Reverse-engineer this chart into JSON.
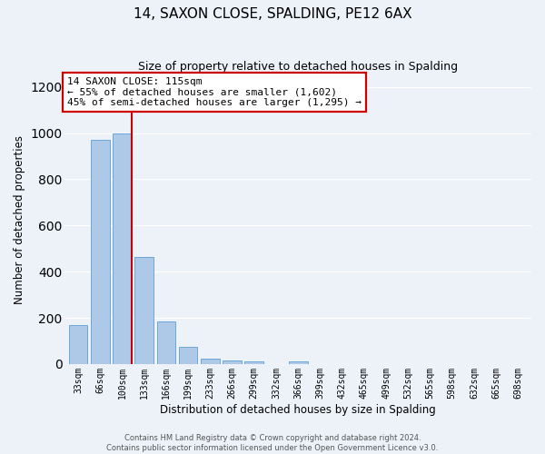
{
  "title": "14, SAXON CLOSE, SPALDING, PE12 6AX",
  "subtitle": "Size of property relative to detached houses in Spalding",
  "xlabel": "Distribution of detached houses by size in Spalding",
  "ylabel": "Number of detached properties",
  "bin_labels": [
    "33sqm",
    "66sqm",
    "100sqm",
    "133sqm",
    "166sqm",
    "199sqm",
    "233sqm",
    "266sqm",
    "299sqm",
    "332sqm",
    "366sqm",
    "399sqm",
    "432sqm",
    "465sqm",
    "499sqm",
    "532sqm",
    "565sqm",
    "598sqm",
    "632sqm",
    "665sqm",
    "698sqm"
  ],
  "bar_values": [
    170,
    970,
    1000,
    465,
    185,
    75,
    25,
    15,
    10,
    0,
    10,
    0,
    0,
    0,
    0,
    0,
    0,
    0,
    0,
    0,
    0
  ],
  "bar_color": "#aec9e8",
  "bar_edgecolor": "#5a9fd4",
  "red_line_x": 2.42,
  "annotation_text": "14 SAXON CLOSE: 115sqm\n← 55% of detached houses are smaller (1,602)\n45% of semi-detached houses are larger (1,295) →",
  "annotation_box_color": "#ffffff",
  "annotation_box_edgecolor": "#cc0000",
  "ylim": [
    0,
    1250
  ],
  "yticks": [
    0,
    200,
    400,
    600,
    800,
    1000,
    1200
  ],
  "bg_color": "#edf2f9",
  "grid_color": "#ffffff",
  "title_fontsize": 11,
  "subtitle_fontsize": 9,
  "axis_label_fontsize": 8.5,
  "tick_fontsize": 7,
  "annotation_fontsize": 8,
  "footer_fontsize": 6,
  "red_line_color": "#cc0000",
  "footer_text": "Contains HM Land Registry data © Crown copyright and database right 2024.\nContains public sector information licensed under the Open Government Licence v3.0."
}
